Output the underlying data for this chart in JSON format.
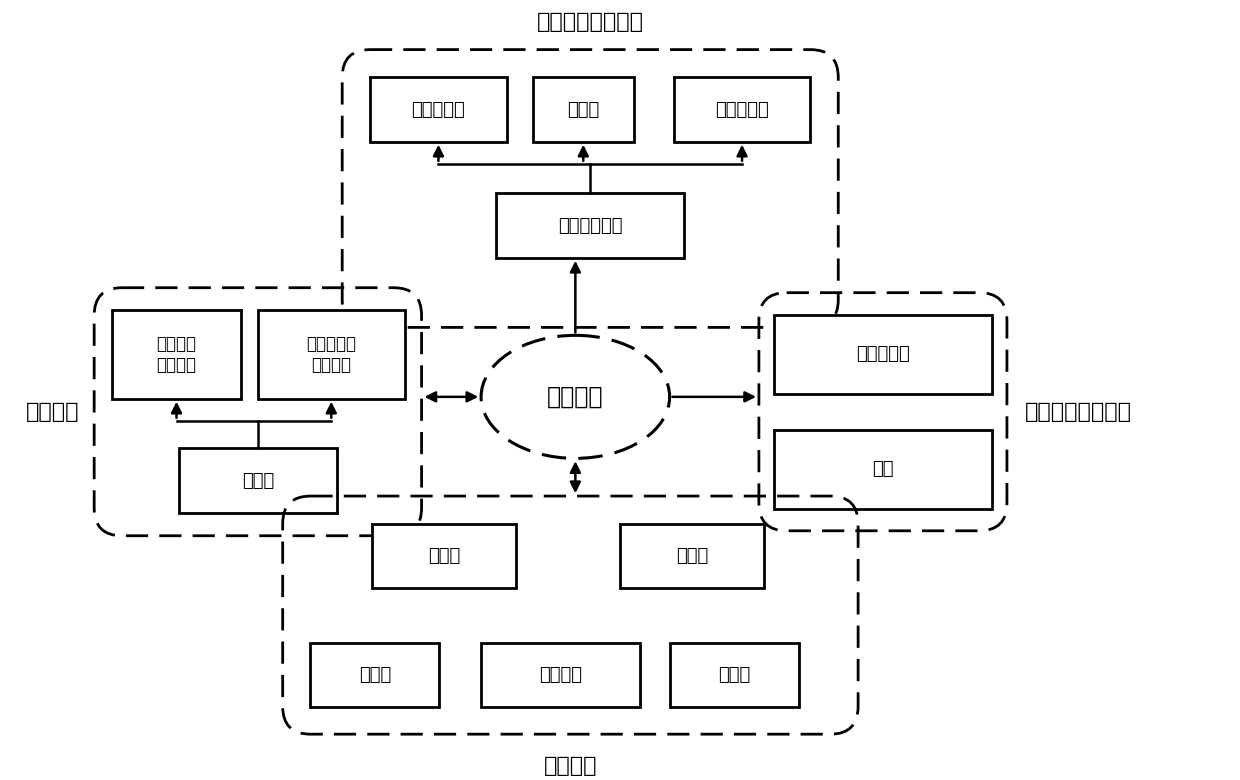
{
  "title": "数据测量采集模块",
  "label_heating": "加热模块",
  "label_imaging": "影像采集分析模块",
  "label_other": "其他设备",
  "control_label": "控制模块",
  "data_acq_label": "数据采集系统",
  "boxes": {
    "temp_sensor": "温度传感器",
    "flow_meter": "流量计",
    "pressure_sensor": "压力传感器",
    "molten_salt_circuit": "熔盐回路\n电加热丝",
    "heat_oil_circuit": "导热油回路\n电加热丝",
    "regulator": "调压器",
    "high_speed_camera": "高速摄像仪",
    "light_source": "光源",
    "cooling_tower": "冷却塔",
    "molten_salt_furnace": "熔盐炉",
    "main_pump": "主水泵",
    "aux_pump": "辅助水泵",
    "vacuum_pump": "真空泵"
  },
  "bg_color": "#ffffff",
  "box_color": "#ffffff",
  "box_edge_color": "#000000",
  "text_color": "#000000",
  "font_size": 13,
  "title_font_size": 16
}
